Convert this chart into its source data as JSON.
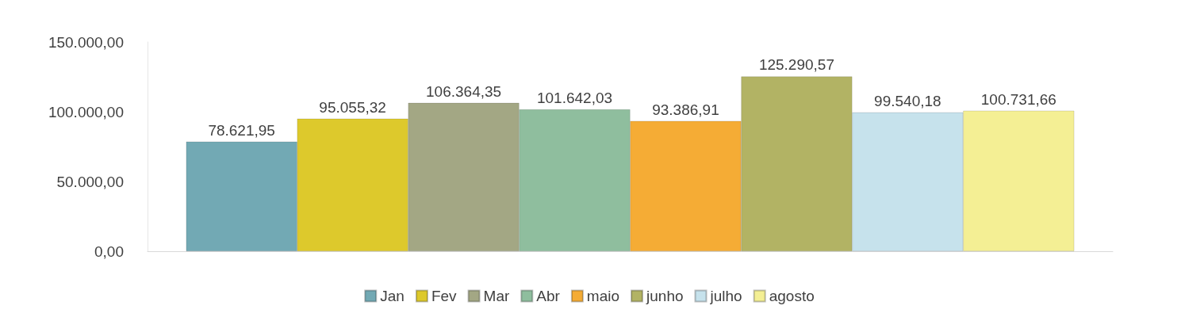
{
  "chart_data": {
    "type": "bar",
    "categories": [
      null
    ],
    "series": [
      {
        "name": "Jan",
        "color": "#72a9b4",
        "values": [
          78621.95
        ],
        "value_labels": [
          "78.621,95"
        ]
      },
      {
        "name": "Fev",
        "color": "#ddc92c",
        "values": [
          95055.32
        ],
        "value_labels": [
          "95.055,32"
        ]
      },
      {
        "name": "Mar",
        "color": "#a3a784",
        "values": [
          106364.35
        ],
        "value_labels": [
          "106.364,35"
        ]
      },
      {
        "name": "Abr",
        "color": "#8fbe9e",
        "values": [
          101642.03
        ],
        "value_labels": [
          "101.642,03"
        ]
      },
      {
        "name": "maio",
        "color": "#f5ac35",
        "values": [
          93386.91
        ],
        "value_labels": [
          "93.386,91"
        ]
      },
      {
        "name": "junho",
        "color": "#b2b364",
        "values": [
          125290.57
        ],
        "value_labels": [
          "125.290,57"
        ]
      },
      {
        "name": "julho",
        "color": "#c6e2ec",
        "values": [
          99540.18
        ],
        "value_labels": [
          "99.540,18"
        ]
      },
      {
        "name": "agosto",
        "color": "#f4ef94",
        "values": [
          100731.66
        ],
        "value_labels": [
          "100.731,66"
        ]
      }
    ],
    "ylim": [
      0,
      150000
    ],
    "yticks": [
      {
        "value": 0,
        "label": "0,00"
      },
      {
        "value": 50000,
        "label": "50.000,00"
      },
      {
        "value": 100000,
        "label": "100.000,00"
      },
      {
        "value": 150000,
        "label": "150.000,00"
      }
    ],
    "grid": false,
    "legend": "bottom"
  }
}
